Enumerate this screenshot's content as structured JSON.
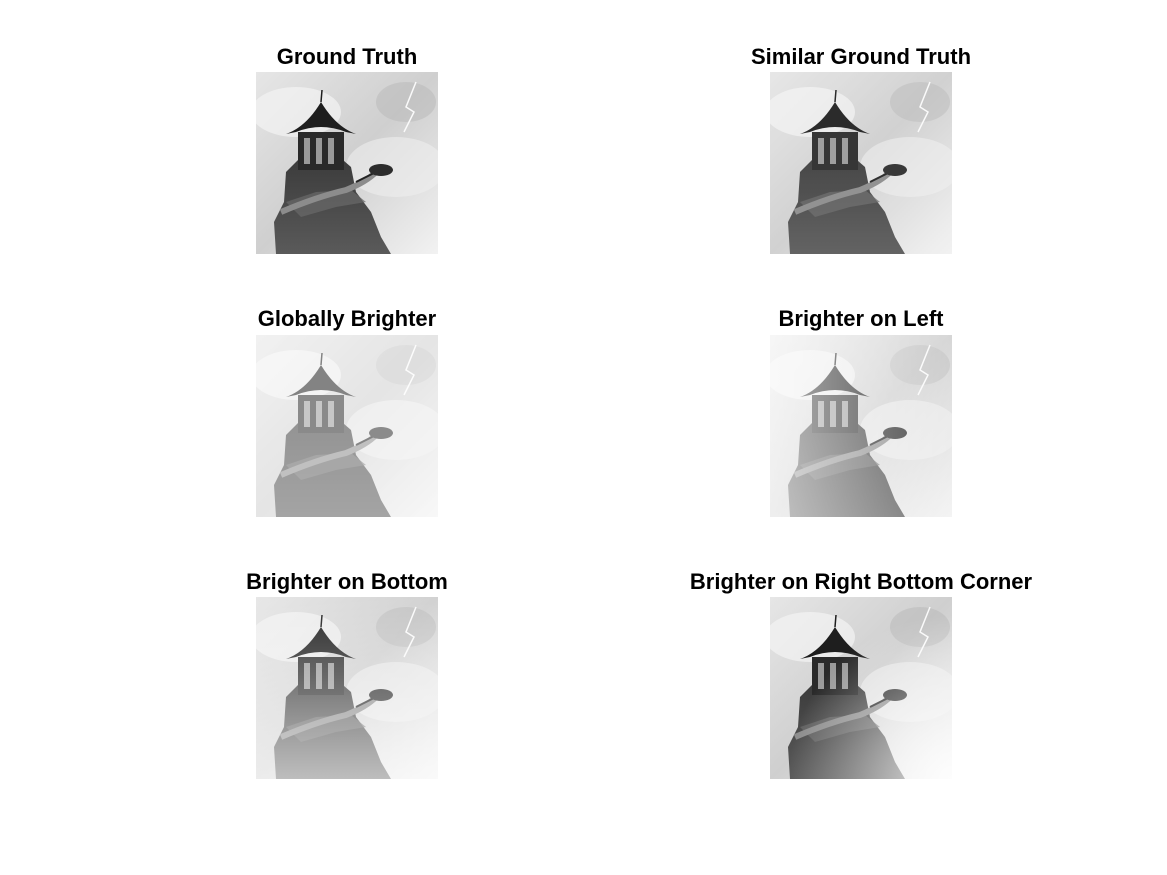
{
  "panels": [
    {
      "title": "Ground Truth",
      "variant": "base"
    },
    {
      "title": "Similar Ground Truth",
      "variant": "similar"
    },
    {
      "title": "Globally Brighter",
      "variant": "global"
    },
    {
      "title": "Brighter on Left",
      "variant": "left"
    },
    {
      "title": "Brighter on Bottom",
      "variant": "bottom"
    },
    {
      "title": "Brighter on Right Bottom Corner",
      "variant": "corner"
    }
  ]
}
